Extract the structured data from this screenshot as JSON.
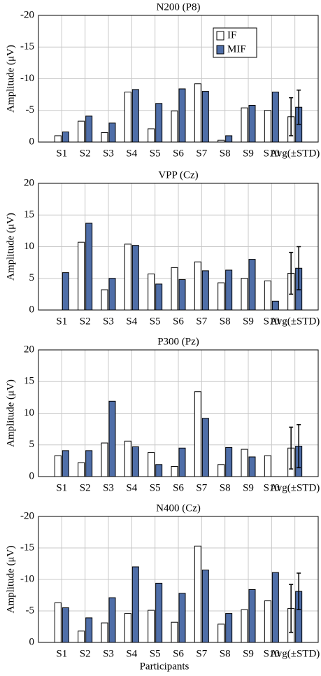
{
  "chart_data": [
    {
      "type": "bar",
      "title": "N200 (P8)",
      "categories": [
        "S1",
        "S2",
        "S3",
        "S4",
        "S5",
        "S6",
        "S7",
        "S8",
        "S9",
        "S10",
        "Avg(±STD)"
      ],
      "ylabel": "Amplitude (μV)",
      "ylim": [
        0,
        -20
      ],
      "yticks": [
        0,
        -5,
        -10,
        -15,
        -20
      ],
      "grid": true,
      "legend": "upper right",
      "series": [
        {
          "name": "IF",
          "color": "#ffffff",
          "values": [
            -1.0,
            -3.3,
            -1.5,
            -7.9,
            -2.1,
            -4.9,
            -9.2,
            -0.3,
            -5.4,
            -5.0,
            -4.0
          ],
          "errors": [
            null,
            null,
            null,
            null,
            null,
            null,
            null,
            null,
            null,
            null,
            3.0
          ]
        },
        {
          "name": "MIF",
          "color": "#4f6ea8",
          "values": [
            -1.6,
            -4.1,
            -3.0,
            -8.3,
            -6.1,
            -8.4,
            -8.0,
            -1.0,
            -5.8,
            -7.9,
            -5.5
          ],
          "errors": [
            null,
            null,
            null,
            null,
            null,
            null,
            null,
            null,
            null,
            null,
            2.7
          ]
        }
      ]
    },
    {
      "type": "bar",
      "title": "VPP (Cz)",
      "categories": [
        "S1",
        "S2",
        "S3",
        "S4",
        "S5",
        "S6",
        "S7",
        "S8",
        "S9",
        "S10",
        "Avg(±STD)"
      ],
      "ylabel": "Amplitude (μV)",
      "ylim": [
        0,
        20
      ],
      "yticks": [
        0,
        5,
        10,
        15,
        20
      ],
      "grid": true,
      "series": [
        {
          "color": "#ffffff",
          "values": [
            0,
            10.7,
            3.2,
            10.4,
            5.7,
            6.7,
            7.6,
            4.3,
            5.0,
            4.6,
            5.8
          ],
          "errors": [
            null,
            null,
            null,
            null,
            null,
            null,
            null,
            null,
            null,
            null,
            3.3
          ]
        },
        {
          "color": "#4f6ea8",
          "values": [
            5.9,
            13.7,
            5.0,
            10.2,
            4.1,
            4.8,
            6.2,
            6.3,
            8.0,
            1.4,
            6.6
          ],
          "errors": [
            null,
            null,
            null,
            null,
            null,
            null,
            null,
            null,
            null,
            null,
            3.4
          ]
        }
      ]
    },
    {
      "type": "bar",
      "title": "P300 (Pz)",
      "categories": [
        "S1",
        "S2",
        "S3",
        "S4",
        "S5",
        "S6",
        "S7",
        "S8",
        "S9",
        "S10",
        "Avg(±STD)"
      ],
      "ylabel": "Amplitude (μV)",
      "ylim": [
        0,
        20
      ],
      "yticks": [
        0,
        5,
        10,
        15,
        20
      ],
      "grid": true,
      "series": [
        {
          "color": "#ffffff",
          "values": [
            3.3,
            2.2,
            5.3,
            5.6,
            3.8,
            1.6,
            13.4,
            1.9,
            4.3,
            3.3,
            4.5
          ],
          "errors": [
            null,
            null,
            null,
            null,
            null,
            null,
            null,
            null,
            null,
            null,
            3.3
          ]
        },
        {
          "color": "#4f6ea8",
          "values": [
            4.1,
            4.1,
            11.9,
            4.7,
            1.9,
            4.5,
            9.2,
            4.6,
            3.1,
            0,
            4.8
          ],
          "errors": [
            null,
            null,
            null,
            null,
            null,
            null,
            null,
            null,
            null,
            null,
            3.4
          ]
        }
      ]
    },
    {
      "type": "bar",
      "title": "N400 (Cz)",
      "categories": [
        "S1",
        "S2",
        "S3",
        "S4",
        "S5",
        "S6",
        "S7",
        "S8",
        "S9",
        "S10",
        "Avg(±STD)"
      ],
      "ylabel": "Amplitude (μV)",
      "xlabel": "Participants",
      "ylim": [
        0,
        -20
      ],
      "yticks": [
        0,
        -5,
        -10,
        -15,
        -20
      ],
      "grid": true,
      "series": [
        {
          "color": "#ffffff",
          "values": [
            -6.3,
            -1.8,
            -3.1,
            -4.6,
            -5.1,
            -3.2,
            -15.3,
            -2.9,
            -5.2,
            -6.6,
            -5.4
          ],
          "errors": [
            null,
            null,
            null,
            null,
            null,
            null,
            null,
            null,
            null,
            null,
            3.8
          ]
        },
        {
          "color": "#4f6ea8",
          "values": [
            -5.5,
            -3.9,
            -7.1,
            -12.0,
            -9.4,
            -7.8,
            -11.5,
            -4.6,
            -8.4,
            -11.1,
            -8.1
          ],
          "errors": [
            null,
            null,
            null,
            null,
            null,
            null,
            null,
            null,
            null,
            null,
            2.9
          ]
        }
      ]
    }
  ]
}
